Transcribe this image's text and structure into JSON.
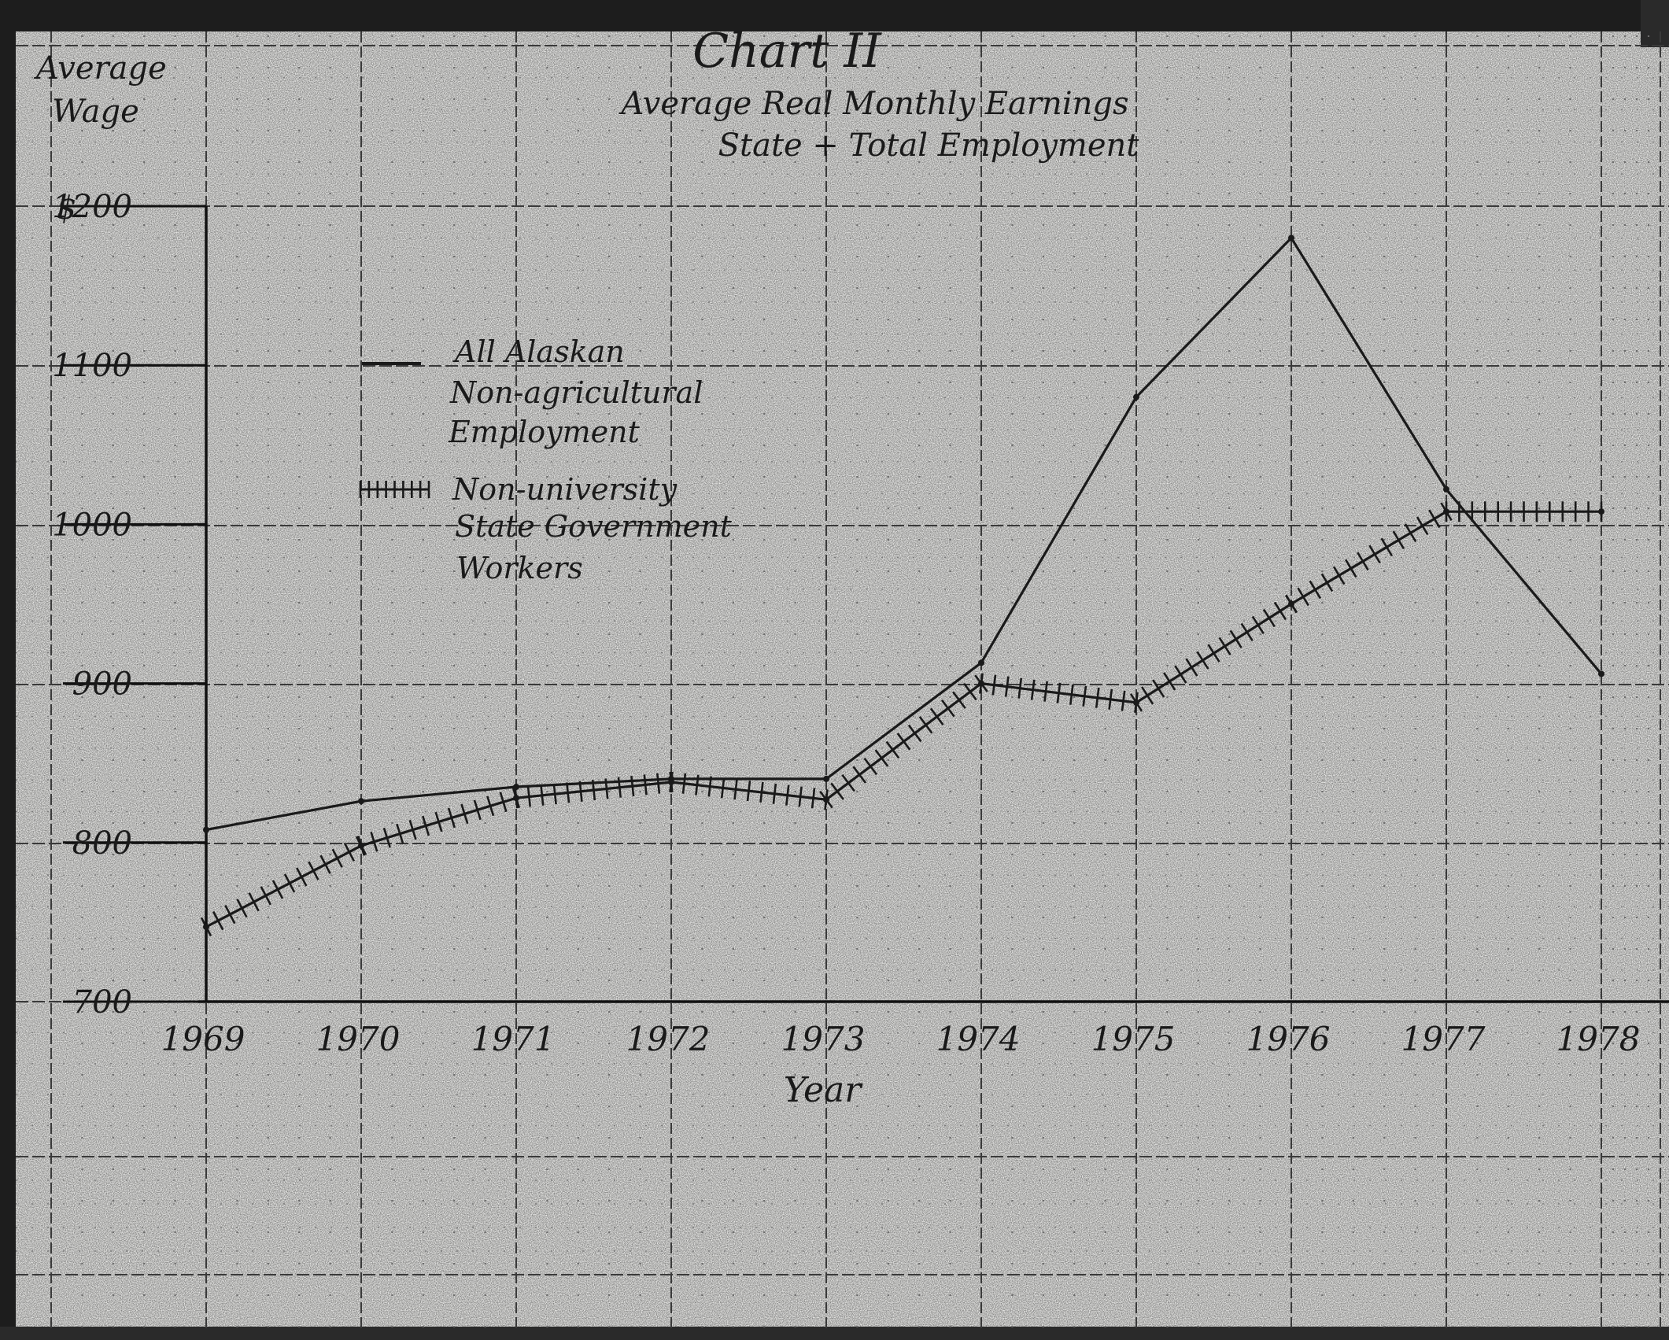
{
  "chart_data": {
    "type": "line",
    "title": "Chart II",
    "subtitle_line1": "Average Real Monthly Earnings",
    "subtitle_line2": "State + Total Employment",
    "ylabel_line1": "Average",
    "ylabel_line2": "Wage",
    "xlabel": "Year",
    "currency_symbol": "$",
    "x": [
      1969,
      1970,
      1971,
      1972,
      1973,
      1974,
      1975,
      1976,
      1977,
      1978
    ],
    "xticks": [
      "1969",
      "1970",
      "1971",
      "1972",
      "1973",
      "1974",
      "1975",
      "1976",
      "1977",
      "1978"
    ],
    "yticks": [
      "1200",
      "1100",
      "1000",
      "900",
      "800",
      "700"
    ],
    "ylim": [
      700,
      1200
    ],
    "grid": true,
    "legend_placement": "upper-left",
    "series": [
      {
        "name_lines": [
          "All Alaskan",
          "Non-agricultural",
          "Employment"
        ],
        "style": "solid",
        "color": "#1a1a1a",
        "values": [
          808,
          826,
          835,
          840,
          840,
          913,
          1080,
          1180,
          1022,
          906
        ]
      },
      {
        "name_lines": [
          "Non-university",
          "State Government",
          "Workers"
        ],
        "style": "hatched",
        "color": "#1a1a1a",
        "values": [
          747,
          798,
          828,
          838,
          827,
          900,
          888,
          950,
          1008,
          1008
        ]
      }
    ]
  }
}
